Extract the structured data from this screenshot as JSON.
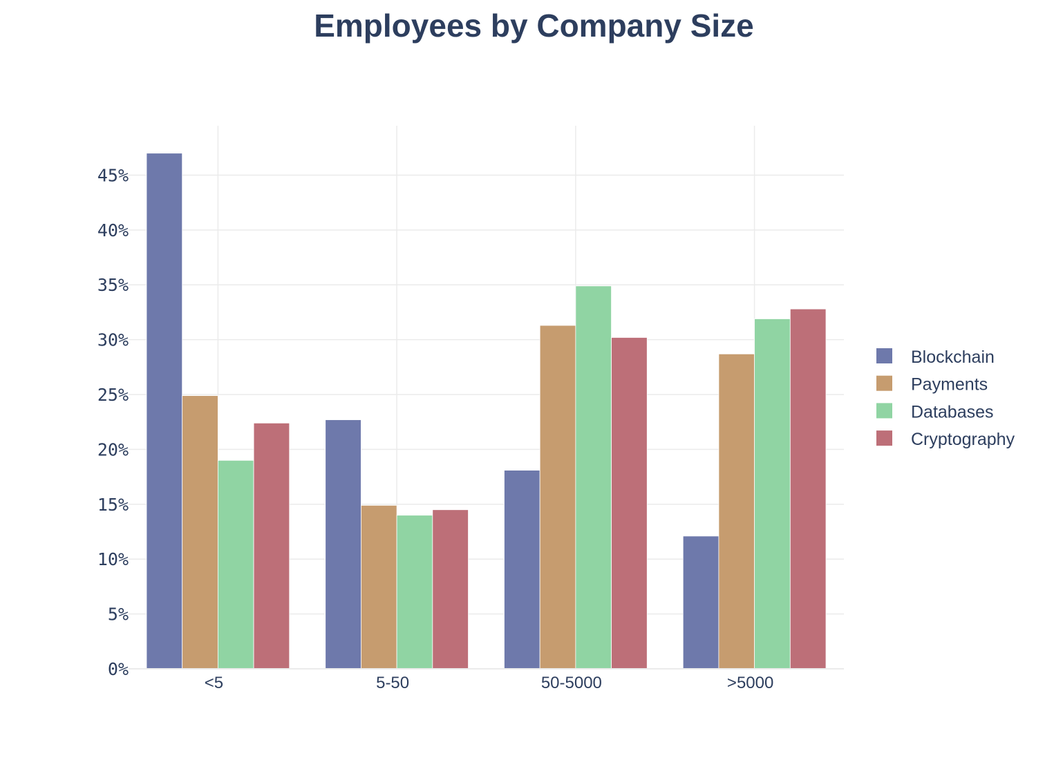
{
  "chart_data": {
    "type": "bar",
    "title": "Employees by Company Size",
    "xlabel": "",
    "ylabel": "",
    "categories": [
      "<5",
      "5-50",
      "50-5000",
      ">5000"
    ],
    "series": [
      {
        "name": "Blockchain",
        "color": "#6e79ab",
        "values": [
          47.0,
          22.7,
          18.1,
          12.1
        ]
      },
      {
        "name": "Payments",
        "color": "#c69c6f",
        "values": [
          24.9,
          14.9,
          31.3,
          28.7
        ]
      },
      {
        "name": "Databases",
        "color": "#90d4a3",
        "values": [
          19.0,
          14.0,
          34.9,
          31.9
        ]
      },
      {
        "name": "Cryptography",
        "color": "#bd6f78",
        "values": [
          22.4,
          14.5,
          30.2,
          32.8
        ]
      }
    ],
    "ylim": [
      0,
      49.5
    ],
    "yticks": [
      0,
      5,
      10,
      15,
      20,
      25,
      30,
      35,
      40,
      45
    ],
    "ytick_labels": [
      "0%",
      "5%",
      "10%",
      "15%",
      "20%",
      "25%",
      "30%",
      "35%",
      "40%",
      "45%"
    ],
    "grid": true,
    "legend_position": "right"
  }
}
